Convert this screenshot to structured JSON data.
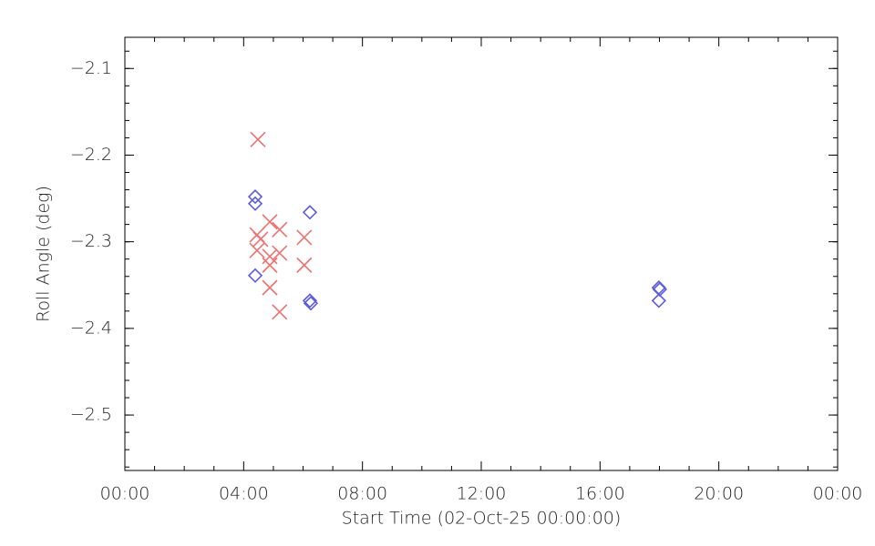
{
  "chart_data": {
    "type": "scatter",
    "xlabel": "Start Time (02-Oct-25 00:00:00)",
    "ylabel": "Roll Angle (deg)",
    "xlim": [
      0,
      24
    ],
    "xticks": [
      {
        "value": 0,
        "label": "00:00"
      },
      {
        "value": 4,
        "label": "04:00"
      },
      {
        "value": 8,
        "label": "08:00"
      },
      {
        "value": 12,
        "label": "12:00"
      },
      {
        "value": 16,
        "label": "16:00"
      },
      {
        "value": 20,
        "label": "20:00"
      },
      {
        "value": 24,
        "label": "00:00"
      }
    ],
    "xminor": 4,
    "ylim": [
      -2.564,
      -2.064
    ],
    "yticks": [
      {
        "value": -2.1,
        "label": "−2.1"
      },
      {
        "value": -2.2,
        "label": "−2.2"
      },
      {
        "value": -2.3,
        "label": "−2.3"
      },
      {
        "value": -2.4,
        "label": "−2.4"
      },
      {
        "value": -2.5,
        "label": "−2.5"
      }
    ],
    "yminor": 5,
    "series": [
      {
        "color": "#f07070",
        "marker": "x",
        "x": [
          4.48,
          4.45,
          4.57,
          4.45,
          4.88,
          4.88,
          4.88,
          4.88,
          5.21,
          5.21,
          5.21,
          6.04,
          6.04
        ],
        "values": [
          -2.182,
          -2.292,
          -2.297,
          -2.31,
          -2.277,
          -2.317,
          -2.327,
          -2.353,
          -2.286,
          -2.313,
          -2.381,
          -2.295,
          -2.327
        ]
      },
      {
        "color": "#5a5ae6",
        "marker": "diamond",
        "x": [
          4.39,
          4.39,
          4.39,
          6.23,
          6.23,
          6.26,
          17.98,
          18.01,
          17.98
        ],
        "values": [
          -2.248,
          -2.256,
          -2.339,
          -2.266,
          -2.368,
          -2.371,
          -2.353,
          -2.355,
          -2.368
        ]
      }
    ]
  }
}
